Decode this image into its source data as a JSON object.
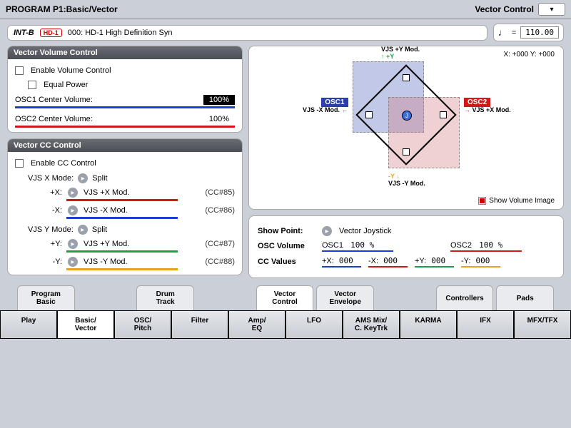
{
  "titlebar": {
    "title": "PROGRAM P1:Basic/Vector",
    "right": "Vector Control"
  },
  "patch": {
    "bank": "INT-B",
    "badge": "HD-1",
    "name": "000: HD-1 High Definition Syn"
  },
  "tempo": {
    "value": "110.00"
  },
  "volumeControl": {
    "header": "Vector Volume Control",
    "enable": "Enable Volume Control",
    "equalPower": "Equal Power",
    "osc1": {
      "label": "OSC1 Center Volume:",
      "value": "100%",
      "color": "#1a3fd0"
    },
    "osc2": {
      "label": "OSC2 Center Volume:",
      "value": "100%",
      "color": "#d01a1a"
    }
  },
  "ccControl": {
    "header": "Vector CC Control",
    "enable": "Enable CC Control",
    "xMode": {
      "label": "VJS X Mode:",
      "value": "Split"
    },
    "yMode": {
      "label": "VJS Y Mode:",
      "value": "Split"
    },
    "pX": {
      "label": "+X:",
      "name": "VJS +X Mod.",
      "cc": "(CC#85)",
      "color": "#d01a1a"
    },
    "nX": {
      "label": "-X:",
      "name": "VJS -X Mod.",
      "cc": "(CC#86)",
      "color": "#1a3fd0"
    },
    "pY": {
      "label": "+Y:",
      "name": "VJS +Y Mod.",
      "cc": "(CC#87)",
      "color": "#1aa04a"
    },
    "nY": {
      "label": "-Y:",
      "name": "VJS -Y Mod.",
      "cc": "(CC#88)",
      "color": "#e8a020"
    }
  },
  "viz": {
    "xy": "X: +000    Y: +000",
    "top": "VJS +Y Mod.",
    "bottom": "VJS -Y Mod.",
    "left": "VJS -X Mod.",
    "right": "VJS +X Mod.",
    "osc1": "OSC1",
    "osc2": "OSC2",
    "showImg": "Show Volume Image",
    "colors": {
      "osc1": "#2a3fa8",
      "osc2": "#d01a1a",
      "green": "#1aa04a",
      "orange": "#e8a020",
      "blue": "#1a3fd0",
      "red": "#d01a1a"
    }
  },
  "info": {
    "showPoint": {
      "label": "Show Point:",
      "value": "Vector Joystick"
    },
    "oscVol": {
      "label": "OSC Volume",
      "osc1": "OSC1",
      "osc1val": "100 %",
      "osc2": "OSC2",
      "osc2val": "100 %"
    },
    "ccVals": {
      "label": "CC Values",
      "pX": "+X:",
      "nX": "-X:",
      "pY": "+Y:",
      "nY": "-Y:",
      "v": "000"
    }
  },
  "tabs1": [
    "Program\nBasic",
    "",
    "Drum\nTrack",
    "",
    "Vector\nControl",
    "Vector\nEnvelope",
    "",
    "Controllers",
    "Pads"
  ],
  "tabs2": [
    "Play",
    "Basic/\nVector",
    "OSC/\nPitch",
    "Filter",
    "Amp/\nEQ",
    "LFO",
    "AMS Mix/\nC. KeyTrk",
    "KARMA",
    "IFX",
    "MFX/TFX"
  ]
}
